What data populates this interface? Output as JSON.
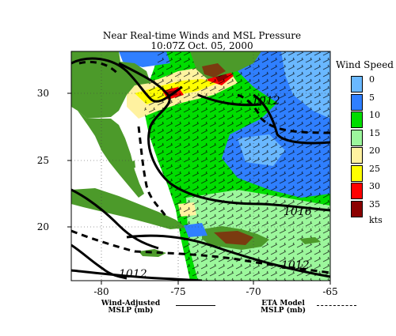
{
  "title": "Near Real-time Winds and MSL Pressure",
  "subtitle": "10:07Z  Oct. 05, 2000",
  "axes": {
    "y_ticks": [
      "30",
      "25",
      "20"
    ],
    "x_ticks": [
      "-80",
      "-75",
      "-70",
      "-65"
    ]
  },
  "isobar_labels": [
    "1012",
    "1012",
    "1016",
    "1012"
  ],
  "legend": {
    "title": "Wind Speed",
    "items": [
      {
        "label": "0",
        "color": "#6ab8ff"
      },
      {
        "label": "5",
        "color": "#2f7fff"
      },
      {
        "label": "10",
        "color": "#00dd00"
      },
      {
        "label": "15",
        "color": "#9cf79c"
      },
      {
        "label": "20",
        "color": "#fff2a0"
      },
      {
        "label": "25",
        "color": "#ffff00"
      },
      {
        "label": "30",
        "color": "#ff0000"
      },
      {
        "label": "35",
        "color": "#8b0000"
      }
    ],
    "unit": "kts"
  },
  "footer": {
    "left_line1": "Wind-Adjusted",
    "left_line2": "MSLP (mb)",
    "right_line1": "ETA Model",
    "right_line2": "MSLP (mb)"
  },
  "colors": {
    "land": "#4c9a2a",
    "mountain": "#7a3b10",
    "ocean_white": "#ffffff"
  }
}
